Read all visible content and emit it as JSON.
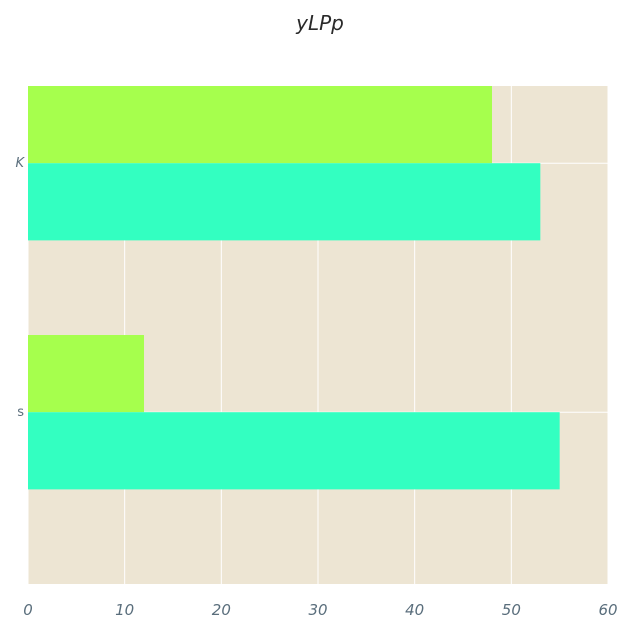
{
  "chart_data": {
    "type": "bar",
    "orientation": "horizontal",
    "title": "yLPp",
    "xlabel": "",
    "ylabel": "",
    "categories": [
      "K",
      "s"
    ],
    "series": [
      {
        "values": [
          48,
          12
        ],
        "color": "#a6ff4d"
      },
      {
        "values": [
          53,
          55
        ],
        "color": "#33ffc1"
      }
    ],
    "xlim": [
      0,
      60
    ],
    "xticks": [
      0,
      10,
      20,
      30,
      40,
      50,
      60
    ],
    "grid": true,
    "legend": "none",
    "colors": {
      "plot_background": "#ede5d3",
      "grid": "#ffffff",
      "tick_text": "#5a6e7c"
    }
  }
}
